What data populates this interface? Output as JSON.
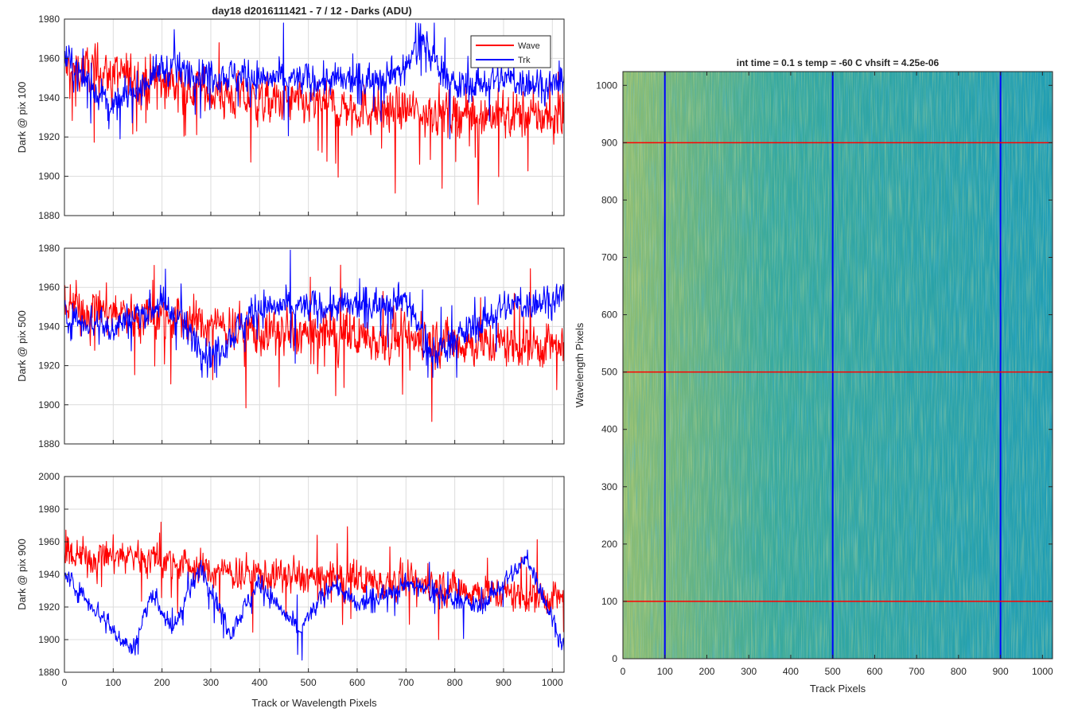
{
  "figure": {
    "title": "day18 d2016111421 - 7 / 12 - Darks (ADU)",
    "x_label": "Track or Wavelength Pixels"
  },
  "legend": {
    "placement": "top-right of first panel",
    "entries": [
      {
        "name": "Wave",
        "color": "#ff0000"
      },
      {
        "name": "Trk",
        "color": "#0000ff"
      }
    ]
  },
  "chart_data": [
    {
      "type": "line",
      "ylabel": "Dark @ pix 100",
      "xlim": [
        0,
        1024
      ],
      "ylim": [
        1880,
        1980
      ],
      "x_ticks": [
        0,
        100,
        200,
        300,
        400,
        500,
        600,
        700,
        800,
        900,
        1000
      ],
      "y_ticks": [
        1880,
        1900,
        1920,
        1940,
        1960,
        1980
      ],
      "grid": true,
      "series": [
        {
          "name": "Wave",
          "color": "#ff0000",
          "approx_level": [
            [
              0,
              1955
            ],
            [
              200,
              1948
            ],
            [
              400,
              1938
            ],
            [
              600,
              1935
            ],
            [
              800,
              1932
            ],
            [
              1024,
              1930
            ]
          ],
          "noise_amplitude": 10,
          "min": 1885,
          "max": 1968
        },
        {
          "name": "Trk",
          "color": "#0000ff",
          "approx_level": [
            [
              0,
              1960
            ],
            [
              100,
              1935
            ],
            [
              200,
              1955
            ],
            [
              400,
              1950
            ],
            [
              600,
              1948
            ],
            [
              700,
              1955
            ],
            [
              730,
              1970
            ],
            [
              800,
              1945
            ],
            [
              900,
              1950
            ],
            [
              1024,
              1945
            ]
          ],
          "noise_amplitude": 7,
          "min": 1919,
          "max": 1978
        }
      ]
    },
    {
      "type": "line",
      "ylabel": "Dark @ pix 500",
      "xlim": [
        0,
        1024
      ],
      "ylim": [
        1880,
        1980
      ],
      "x_ticks": [
        0,
        100,
        200,
        300,
        400,
        500,
        600,
        700,
        800,
        900,
        1000
      ],
      "y_ticks": [
        1880,
        1900,
        1920,
        1940,
        1960,
        1980
      ],
      "grid": true,
      "series": [
        {
          "name": "Wave",
          "color": "#ff0000",
          "approx_level": [
            [
              0,
              1950
            ],
            [
              200,
              1945
            ],
            [
              400,
              1937
            ],
            [
              600,
              1935
            ],
            [
              800,
              1932
            ],
            [
              1024,
              1930
            ]
          ],
          "noise_amplitude": 10,
          "min": 1886,
          "max": 1977
        },
        {
          "name": "Trk",
          "color": "#0000ff",
          "approx_level": [
            [
              0,
              1945
            ],
            [
              100,
              1940
            ],
            [
              200,
              1952
            ],
            [
              300,
              1925
            ],
            [
              400,
              1950
            ],
            [
              500,
              1950
            ],
            [
              600,
              1950
            ],
            [
              700,
              1955
            ],
            [
              750,
              1925
            ],
            [
              900,
              1950
            ],
            [
              1024,
              1955
            ]
          ],
          "noise_amplitude": 7,
          "min": 1914,
          "max": 1979
        }
      ]
    },
    {
      "type": "line",
      "ylabel": "Dark @ pix 900",
      "xlim": [
        0,
        1024
      ],
      "ylim": [
        1880,
        2000
      ],
      "x_ticks": [
        0,
        100,
        200,
        300,
        400,
        500,
        600,
        700,
        800,
        900,
        1000
      ],
      "y_ticks": [
        1880,
        1900,
        1920,
        1940,
        1960,
        1980,
        2000
      ],
      "grid": true,
      "series": [
        {
          "name": "Wave",
          "color": "#ff0000",
          "approx_level": [
            [
              0,
              1950
            ],
            [
              150,
              1952
            ],
            [
              300,
              1942
            ],
            [
              500,
              1938
            ],
            [
              700,
              1935
            ],
            [
              900,
              1928
            ],
            [
              1024,
              1925
            ]
          ],
          "noise_amplitude": 9,
          "min": 1900,
          "max": 1983
        },
        {
          "name": "Trk",
          "color": "#0000ff",
          "approx_level": [
            [
              0,
              1940
            ],
            [
              60,
              1920
            ],
            [
              140,
              1893
            ],
            [
              180,
              1930
            ],
            [
              220,
              1905
            ],
            [
              280,
              1945
            ],
            [
              340,
              1905
            ],
            [
              400,
              1935
            ],
            [
              480,
              1905
            ],
            [
              550,
              1935
            ],
            [
              600,
              1920
            ],
            [
              700,
              1935
            ],
            [
              850,
              1920
            ],
            [
              950,
              1950
            ],
            [
              1024,
              1895
            ]
          ],
          "noise_amplitude": 5,
          "min": 1885,
          "max": 1955
        }
      ]
    },
    {
      "type": "heatmap",
      "title": "int time = 0.1 s   temp = -60 C   vhsift = 4.25e-06",
      "xlabel": "Track Pixels",
      "ylabel": "Wavelength Pixels",
      "xlim": [
        0,
        1024
      ],
      "ylim": [
        0,
        1024
      ],
      "x_ticks": [
        0,
        100,
        200,
        300,
        400,
        500,
        600,
        700,
        800,
        900,
        1000
      ],
      "y_ticks": [
        0,
        100,
        200,
        300,
        400,
        500,
        600,
        700,
        800,
        900,
        1000
      ],
      "colormap": "parula",
      "colors": {
        "low": "#1f9ab0",
        "mid": "#3aa89a",
        "high": "#a6c36a"
      },
      "vertical_markers": {
        "x": [
          100,
          500,
          900
        ],
        "color": "#0000ff"
      },
      "horizontal_markers": {
        "y": [
          100,
          500,
          900
        ],
        "color": "#ff0000"
      }
    }
  ]
}
